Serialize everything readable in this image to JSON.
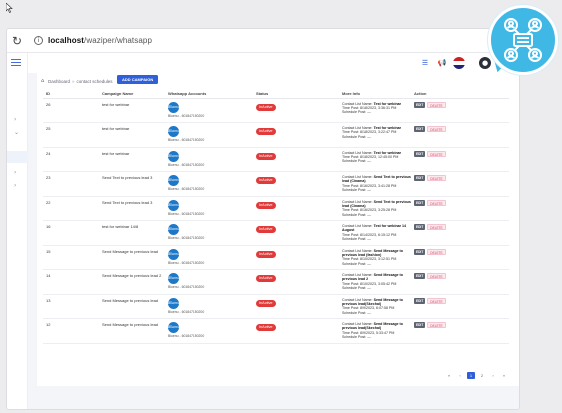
{
  "browser": {
    "url_host": "localhost",
    "url_path": "/waziper/whatsapp"
  },
  "breadcrumb": {
    "home": "Dashboard",
    "current": "contact schedules"
  },
  "add_button": "ADD CAMPAIGN",
  "table": {
    "columns": [
      "ID",
      "Campaign Name",
      "Whatsapp Accounts",
      "Status",
      "More Info",
      "Action"
    ],
    "account_logo_text": "Bluenu",
    "rows": [
      {
        "id": "26",
        "name": "test for webinar",
        "account": "Bluenu - 601847150200",
        "status": "InActive",
        "list": "Test for webinar",
        "time": "8/18/2023, 3:36:31 PM",
        "schedule": "—"
      },
      {
        "id": "25",
        "name": "test for webinar",
        "account": "Bluenu - 601847150200",
        "status": "InActive",
        "list": "Test for webinar",
        "time": "8/18/2023, 3:22:47 PM",
        "schedule": "—"
      },
      {
        "id": "24",
        "name": "test for webinar",
        "account": "Bluenu - 601847150200",
        "status": "InActive",
        "list": "Test for webinar",
        "time": "8/18/2023, 12:45:00 PM",
        "schedule": "—"
      },
      {
        "id": "23",
        "name": "Send Text to previous lead 3",
        "account": "Bluenu - 601847150200",
        "status": "InActive",
        "list": "Send Text to previous lead (Cinama)",
        "time": "8/16/2023, 3:41:28 PM",
        "schedule": "—"
      },
      {
        "id": "22",
        "name": "Send Text to previous lead 3",
        "account": "Bluenu - 601847150200",
        "status": "InActive",
        "list": "Send Text to previous lead (Cinama)",
        "time": "8/16/2023, 3:25:28 PM",
        "schedule": "—"
      },
      {
        "id": "16",
        "name": "test for webinar 14/8",
        "account": "Bluenu - 601847150200",
        "status": "InActive",
        "list": "Test for webinar 14 August",
        "time": "8/14/2023, 6:15:12 PM",
        "schedule": "—"
      },
      {
        "id": "15",
        "name": "Send Message to previous lead",
        "account": "Bluenu - 601847150200",
        "status": "InActive",
        "list": "Send Message to previous lead (fashion)",
        "time": "8/10/2023, 3:12:51 PM",
        "schedule": "—"
      },
      {
        "id": "14",
        "name": "Send Message to previous lead 2",
        "account": "Bluenu - 601847150200",
        "status": "InActive",
        "list": "Send Message to previous lead 2",
        "time": "8/10/2023, 3:05:42 PM",
        "schedule": "—"
      },
      {
        "id": "13",
        "name": "Send Message to previous lead",
        "account": "Bluenu - 601847150200",
        "status": "InActive",
        "list": "Send Message to previous lead(Skechal)",
        "time": "8/9/2023, 6:07:58 PM",
        "schedule": "—"
      },
      {
        "id": "12",
        "name": "Send Message to previous lead",
        "account": "Bluenu - 601847150200",
        "status": "InActive",
        "list": "Send Message to previous lead(Skechal)",
        "time": "8/9/2023, 5:33:47 PM",
        "schedule": "—"
      }
    ],
    "labels": {
      "list": "Contact List Name:",
      "time": "Time Post:",
      "schedule": "Schedule Post:",
      "edit": "EDIT",
      "delete": "DELETE"
    }
  },
  "pagination": [
    "«",
    "‹",
    "1",
    "2",
    "›",
    "»"
  ],
  "pagination_active": "1",
  "colors": {
    "primary": "#2f5fd9",
    "inactive": "#e03a3a",
    "bubble": "#3fb8e6"
  }
}
